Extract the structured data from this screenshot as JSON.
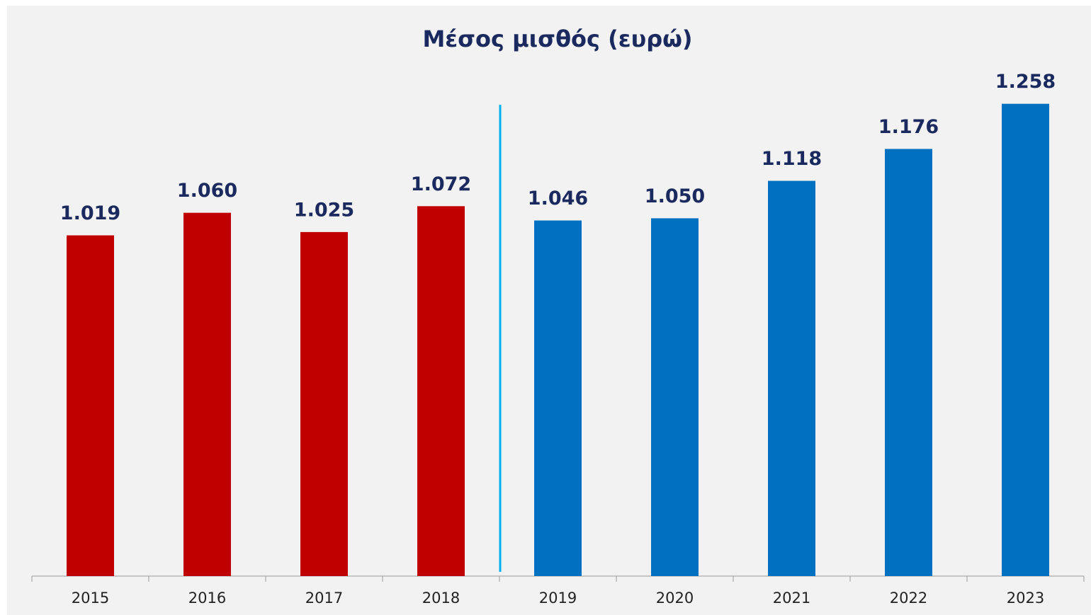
{
  "chart_data": {
    "type": "bar",
    "title": "Μέσος μισθός (ευρώ)",
    "categories": [
      "2015",
      "2016",
      "2017",
      "2018",
      "2019",
      "2020",
      "2021",
      "2022",
      "2023"
    ],
    "values": [
      1019,
      1060,
      1025,
      1072,
      1046,
      1050,
      1118,
      1176,
      1258
    ],
    "value_labels": [
      "1.019",
      "1.060",
      "1.025",
      "1.072",
      "1.046",
      "1.050",
      "1.118",
      "1.176",
      "1.258"
    ],
    "colors": [
      "#c00000",
      "#c00000",
      "#c00000",
      "#c00000",
      "#0070c0",
      "#0070c0",
      "#0070c0",
      "#0070c0",
      "#0070c0"
    ],
    "ylim": [
      400,
      1300
    ],
    "grid": false
  }
}
